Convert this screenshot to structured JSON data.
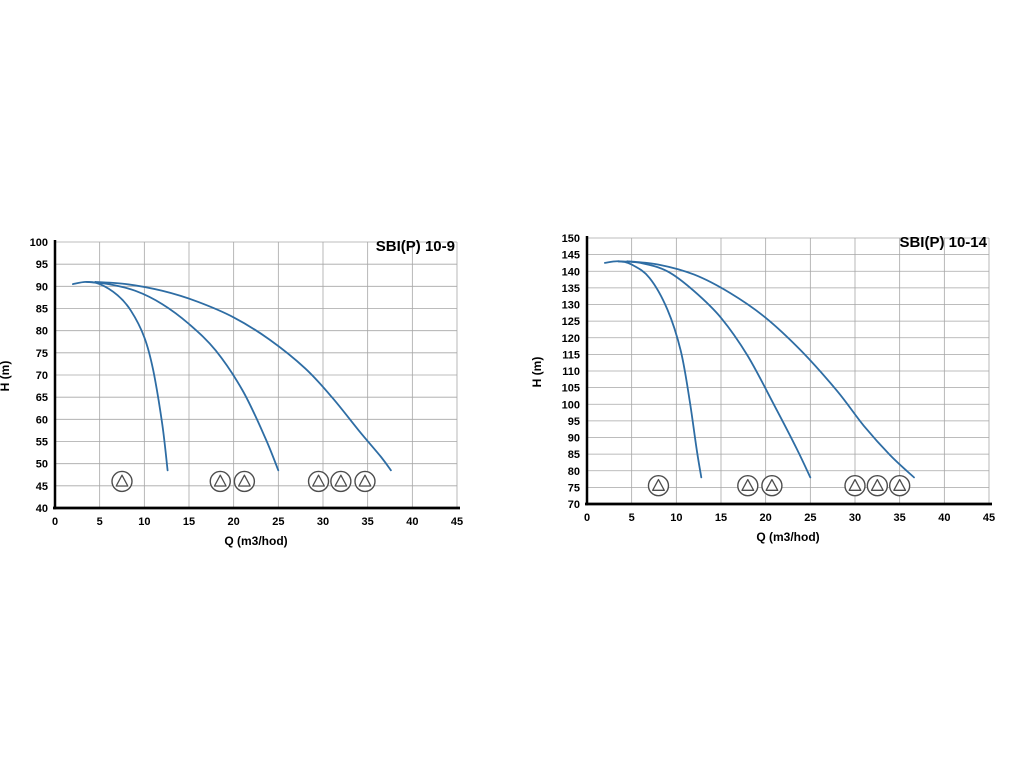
{
  "page": {
    "background": "#ffffff"
  },
  "chart_data": [
    {
      "type": "line",
      "title": "SBI(P) 10-9",
      "xlabel": "Q (m3/hod)",
      "ylabel": "H (m)",
      "xlim": [
        0,
        45
      ],
      "ylim": [
        40,
        100
      ],
      "xticks": [
        0,
        5,
        10,
        15,
        20,
        25,
        30,
        35,
        40,
        45
      ],
      "yticks": [
        40,
        45,
        50,
        55,
        60,
        65,
        70,
        75,
        80,
        85,
        90,
        95,
        100
      ],
      "grid": true,
      "grid_color": "#a6a6a6",
      "axis_color": "#000000",
      "curve_color": "#2e6da4",
      "legend_position": "none",
      "series": [
        {
          "name": "1-pump",
          "points": [
            [
              2,
              90.5
            ],
            [
              3.5,
              91
            ],
            [
              5,
              90.5
            ],
            [
              7,
              88
            ],
            [
              8.5,
              84.5
            ],
            [
              10,
              78.5
            ],
            [
              11,
              71
            ],
            [
              12,
              59
            ],
            [
              12.6,
              48.5
            ]
          ]
        },
        {
          "name": "2-pumps",
          "points": [
            [
              3.5,
              91
            ],
            [
              6,
              90.5
            ],
            [
              9,
              89
            ],
            [
              12,
              86
            ],
            [
              15,
              81.5
            ],
            [
              18,
              75.5
            ],
            [
              21,
              66.5
            ],
            [
              23.5,
              56
            ],
            [
              25,
              48.5
            ]
          ]
        },
        {
          "name": "3-pumps",
          "points": [
            [
              4.5,
              91
            ],
            [
              8,
              90.5
            ],
            [
              12,
              89
            ],
            [
              16,
              86.5
            ],
            [
              20,
              83
            ],
            [
              24,
              78
            ],
            [
              28,
              71.5
            ],
            [
              31,
              65
            ],
            [
              34,
              57.5
            ],
            [
              36.5,
              51.5
            ],
            [
              37.6,
              48.5
            ]
          ]
        }
      ],
      "pump_icons": {
        "y": 46,
        "radius": 10,
        "groups": [
          [
            7.5
          ],
          [
            18.5,
            21.2
          ],
          [
            29.5,
            32,
            34.7
          ]
        ]
      }
    },
    {
      "type": "line",
      "title": "SBI(P) 10-14",
      "xlabel": "Q (m3/hod)",
      "ylabel": "H (m)",
      "xlim": [
        0,
        45
      ],
      "ylim": [
        70,
        150
      ],
      "xticks": [
        0,
        5,
        10,
        15,
        20,
        25,
        30,
        35,
        40,
        45
      ],
      "yticks": [
        70,
        75,
        80,
        85,
        90,
        95,
        100,
        105,
        110,
        115,
        120,
        125,
        130,
        135,
        140,
        145,
        150
      ],
      "grid": true,
      "grid_color": "#a6a6a6",
      "axis_color": "#000000",
      "curve_color": "#2e6da4",
      "legend_position": "none",
      "series": [
        {
          "name": "1-pump",
          "points": [
            [
              2,
              142.5
            ],
            [
              3.5,
              143
            ],
            [
              5,
              142
            ],
            [
              7,
              138
            ],
            [
              9,
              128.5
            ],
            [
              10.5,
              116
            ],
            [
              11.5,
              101
            ],
            [
              12.3,
              86
            ],
            [
              12.8,
              78
            ]
          ]
        },
        {
          "name": "2-pumps",
          "points": [
            [
              3.5,
              143
            ],
            [
              6,
              142.5
            ],
            [
              9,
              140
            ],
            [
              12,
              134
            ],
            [
              15,
              126
            ],
            [
              18,
              114.5
            ],
            [
              21,
              99.5
            ],
            [
              23.5,
              86.5
            ],
            [
              25,
              78
            ]
          ]
        },
        {
          "name": "3-pumps",
          "points": [
            [
              4.5,
              143
            ],
            [
              8,
              142
            ],
            [
              12,
              139
            ],
            [
              16,
              133.5
            ],
            [
              20,
              126
            ],
            [
              24,
              116
            ],
            [
              28,
              104
            ],
            [
              31,
              93.5
            ],
            [
              34,
              84.5
            ],
            [
              36.6,
              78
            ]
          ]
        }
      ],
      "pump_icons": {
        "y": 75.5,
        "radius": 10,
        "groups": [
          [
            8
          ],
          [
            18,
            20.7
          ],
          [
            30,
            32.5,
            35
          ]
        ]
      }
    }
  ]
}
